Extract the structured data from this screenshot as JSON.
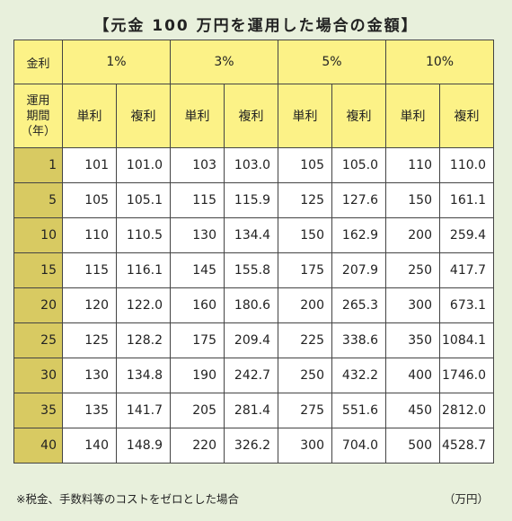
{
  "title": "【元金 100 万円を運用した場合の金額】",
  "header": {
    "rate_label": "金利",
    "period_label_lines": [
      "運用",
      "期間",
      "（年）"
    ],
    "rates": [
      "1%",
      "3%",
      "5%",
      "10%"
    ],
    "simple_label": "単利",
    "compound_label": "複利"
  },
  "rows": [
    {
      "year": "1",
      "values": [
        "101",
        "101.0",
        "103",
        "103.0",
        "105",
        "105.0",
        "110",
        "110.0"
      ]
    },
    {
      "year": "5",
      "values": [
        "105",
        "105.1",
        "115",
        "115.9",
        "125",
        "127.6",
        "150",
        "161.1"
      ]
    },
    {
      "year": "10",
      "values": [
        "110",
        "110.5",
        "130",
        "134.4",
        "150",
        "162.9",
        "200",
        "259.4"
      ]
    },
    {
      "year": "15",
      "values": [
        "115",
        "116.1",
        "145",
        "155.8",
        "175",
        "207.9",
        "250",
        "417.7"
      ]
    },
    {
      "year": "20",
      "values": [
        "120",
        "122.0",
        "160",
        "180.6",
        "200",
        "265.3",
        "300",
        "673.1"
      ]
    },
    {
      "year": "25",
      "values": [
        "125",
        "128.2",
        "175",
        "209.4",
        "225",
        "338.6",
        "350",
        "1084.1"
      ]
    },
    {
      "year": "30",
      "values": [
        "130",
        "134.8",
        "190",
        "242.7",
        "250",
        "432.2",
        "400",
        "1746.0"
      ]
    },
    {
      "year": "35",
      "values": [
        "135",
        "141.7",
        "205",
        "281.4",
        "275",
        "551.6",
        "450",
        "2812.0"
      ]
    },
    {
      "year": "40",
      "values": [
        "140",
        "148.9",
        "220",
        "326.2",
        "300",
        "704.0",
        "500",
        "4528.7"
      ]
    }
  ],
  "footnote": "※税金、手数料等のコストをゼロとした場合",
  "unit": "（万円）"
}
